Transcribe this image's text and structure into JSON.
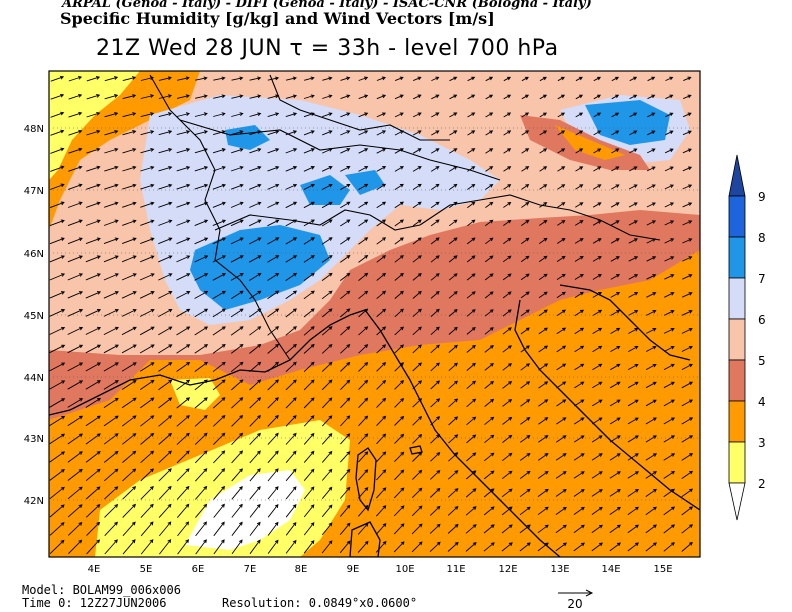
{
  "header": {
    "credits": "ARPAL (Genoa - Italy)  -  DIFI (Genoa - Italy)  -  ISAC-CNR (Bologna - Italy)",
    "title": "Specific Humidity [g/kg] and Wind Vectors [m/s]",
    "subtitle": "21Z Wed 28 JUN  τ = 33h  -  level 700 hPa"
  },
  "map": {
    "lon_ticks": [
      "4E",
      "5E",
      "6E",
      "7E",
      "8E",
      "9E",
      "10E",
      "11E",
      "12E",
      "13E",
      "14E",
      "15E"
    ],
    "lat_ticks": [
      "48N",
      "47N",
      "46N",
      "45N",
      "44N",
      "43N",
      "42N"
    ],
    "wind_direction": "from south-west"
  },
  "colorbar": {
    "labels": [
      "2",
      "3",
      "4",
      "5",
      "6",
      "7",
      "8",
      "9"
    ],
    "colors": [
      "#ffff66",
      "#ff9a00",
      "#e07860",
      "#f8c4aa",
      "#d4dcf8",
      "#2096e8",
      "#1e64dc",
      "#1e46a0"
    ]
  },
  "footer": {
    "model": "Model: BOLAM99_006x006",
    "time0": "Time 0: 12Z27JUN2006",
    "resolution": "Resolution: 0.0849°x0.0600°",
    "vector_ref": "20"
  },
  "palette": {
    "humidity_2_3": "#ffff66",
    "humidity_3_4": "#ff9a00",
    "humidity_4_5": "#e07860",
    "humidity_5_6": "#f8c4aa",
    "humidity_6_7": "#d4dcf8",
    "humidity_7_8": "#2096e8",
    "humidity_below_2": "#ffffff",
    "coastline": "#000000"
  }
}
